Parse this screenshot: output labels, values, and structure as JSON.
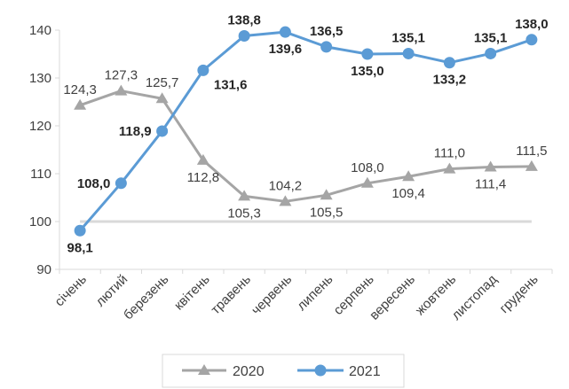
{
  "chart_data": {
    "type": "line",
    "title": "",
    "xlabel": "",
    "ylabel": "",
    "categories": [
      "січень",
      "лютий",
      "березень",
      "квітень",
      "травень",
      "червень",
      "липень",
      "серпень",
      "вересень",
      "жовтень",
      "листопад",
      "грудень"
    ],
    "ylim": [
      90,
      140
    ],
    "yticks": [
      90,
      100,
      110,
      120,
      130,
      140
    ],
    "reference_line": 100,
    "grid": false,
    "legend_position": "bottom",
    "series": [
      {
        "name": "2020",
        "color": "#a5a5a5",
        "marker": "triangle",
        "values": [
          124.3,
          127.3,
          125.7,
          112.8,
          105.3,
          104.2,
          105.5,
          108.0,
          109.4,
          111.0,
          111.4,
          111.5
        ],
        "labels": [
          "124,3",
          "127,3",
          "125,7",
          "112,8",
          "105,3",
          "104,2",
          "105,5",
          "108,0",
          "109,4",
          "111,0",
          "111,4",
          "111,5"
        ]
      },
      {
        "name": "2021",
        "color": "#5b9bd5",
        "marker": "circle",
        "values": [
          98.1,
          108.0,
          118.9,
          131.6,
          138.8,
          139.6,
          136.5,
          135.0,
          135.1,
          133.2,
          135.1,
          138.0
        ],
        "labels": [
          "98,1",
          "108,0",
          "118,9",
          "131,6",
          "138,8",
          "139,6",
          "136,5",
          "135,0",
          "135,1",
          "133,2",
          "135,1",
          "138,0"
        ]
      }
    ]
  }
}
